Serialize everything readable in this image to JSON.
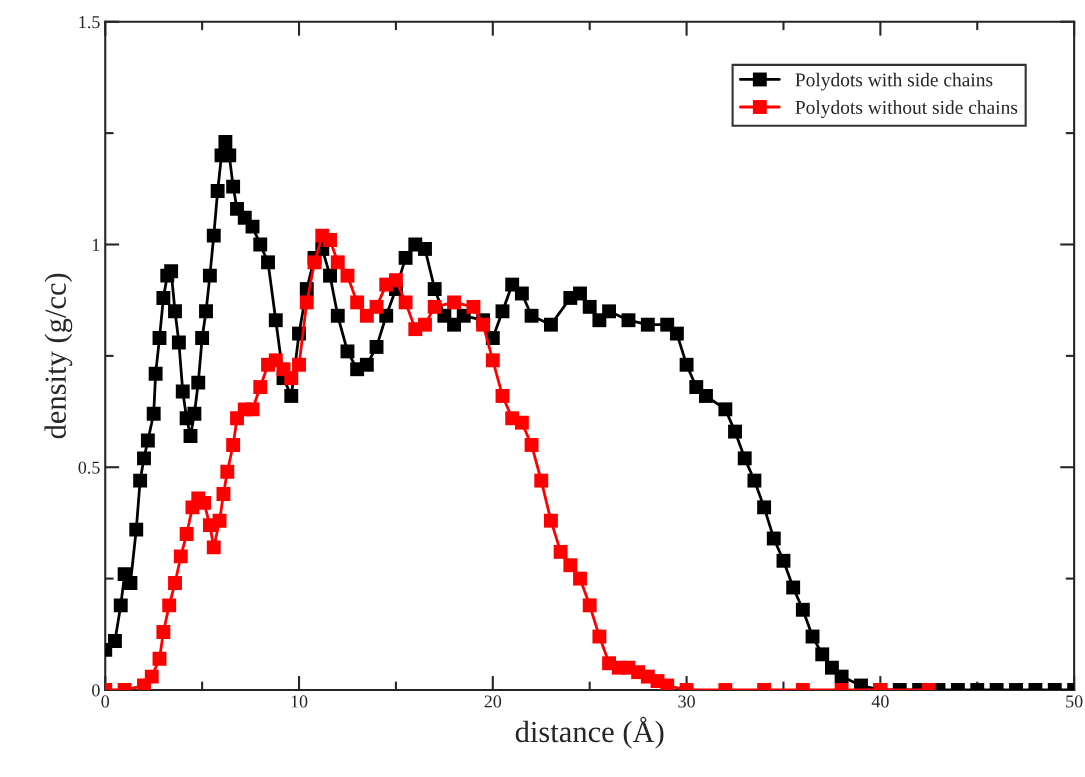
{
  "chart_data": {
    "type": "line",
    "xlabel": "distance (Å)",
    "ylabel": "density (g/cc)",
    "xlim": [
      0,
      50
    ],
    "ylim": [
      0,
      1.5
    ],
    "xticks": [
      0,
      10,
      20,
      30,
      40,
      50
    ],
    "yticks": [
      0,
      0.5,
      1,
      1.5
    ],
    "grid": false,
    "legend": "top right",
    "marker": "square",
    "line_style": "solid",
    "series": [
      {
        "name": "Polydots with side chains",
        "color": "#000000",
        "x": [
          0,
          0.5,
          0.8,
          1.0,
          1.3,
          1.6,
          1.8,
          2.0,
          2.2,
          2.5,
          2.6,
          2.8,
          3.0,
          3.2,
          3.4,
          3.6,
          3.8,
          4.0,
          4.2,
          4.4,
          4.6,
          4.8,
          5.0,
          5.2,
          5.4,
          5.6,
          5.8,
          6.0,
          6.2,
          6.4,
          6.6,
          6.8,
          7.2,
          7.6,
          8.0,
          8.4,
          8.8,
          9.2,
          9.6,
          10.0,
          10.4,
          10.8,
          11.2,
          11.6,
          12.0,
          12.5,
          13.0,
          13.5,
          14.0,
          14.5,
          15.0,
          15.5,
          16.0,
          16.5,
          17.0,
          17.5,
          18.0,
          18.5,
          19.5,
          20.0,
          20.5,
          21.0,
          21.5,
          22.0,
          23.0,
          24.0,
          24.5,
          25.0,
          25.5,
          26.0,
          27.0,
          28.0,
          29.0,
          29.5,
          30.0,
          30.5,
          31.0,
          32.0,
          32.5,
          33.0,
          33.5,
          34.0,
          34.5,
          35.0,
          35.5,
          36.0,
          36.5,
          37.0,
          37.5,
          38.0,
          39.0,
          40.0,
          41.0,
          42.0,
          43.0,
          44.0,
          45.0,
          46.0,
          47.0,
          48.0,
          49.0,
          50.0
        ],
        "values": [
          0.09,
          0.11,
          0.19,
          0.26,
          0.24,
          0.36,
          0.47,
          0.52,
          0.56,
          0.62,
          0.71,
          0.79,
          0.88,
          0.93,
          0.94,
          0.85,
          0.78,
          0.67,
          0.61,
          0.57,
          0.62,
          0.69,
          0.79,
          0.85,
          0.93,
          1.02,
          1.12,
          1.2,
          1.23,
          1.2,
          1.13,
          1.08,
          1.06,
          1.04,
          1.0,
          0.96,
          0.83,
          0.7,
          0.66,
          0.8,
          0.9,
          0.97,
          0.99,
          0.93,
          0.84,
          0.76,
          0.72,
          0.73,
          0.77,
          0.84,
          0.9,
          0.97,
          1.0,
          0.99,
          0.9,
          0.84,
          0.82,
          0.84,
          0.83,
          0.79,
          0.85,
          0.91,
          0.89,
          0.84,
          0.82,
          0.88,
          0.89,
          0.86,
          0.83,
          0.85,
          0.83,
          0.82,
          0.82,
          0.8,
          0.73,
          0.68,
          0.66,
          0.63,
          0.58,
          0.52,
          0.47,
          0.41,
          0.34,
          0.29,
          0.23,
          0.18,
          0.12,
          0.08,
          0.05,
          0.03,
          0.01,
          0.0,
          0,
          0,
          0,
          0,
          0,
          0,
          0,
          0,
          0,
          0
        ]
      },
      {
        "name": "Polydots without side chains",
        "color": "#ff0000",
        "x": [
          0,
          1.0,
          2.0,
          2.4,
          2.8,
          3.0,
          3.3,
          3.6,
          3.9,
          4.2,
          4.5,
          4.8,
          5.1,
          5.4,
          5.6,
          5.9,
          6.1,
          6.3,
          6.6,
          6.8,
          7.2,
          7.6,
          8.0,
          8.4,
          8.8,
          9.2,
          9.6,
          10.0,
          10.4,
          10.8,
          11.2,
          11.6,
          12.0,
          12.5,
          13.0,
          13.5,
          14.0,
          14.5,
          15.0,
          15.5,
          16.0,
          16.5,
          17.0,
          18.0,
          19.0,
          19.5,
          20.0,
          20.5,
          21.0,
          21.5,
          22.0,
          22.5,
          23.0,
          23.5,
          24.0,
          24.5,
          25.0,
          25.5,
          26.0,
          26.5,
          27.0,
          27.5,
          28.0,
          28.5,
          29.0,
          30.0,
          32.0,
          34.0,
          36.0,
          38.0,
          40.0,
          42.5
        ],
        "values": [
          0,
          0,
          0.01,
          0.03,
          0.07,
          0.13,
          0.19,
          0.24,
          0.3,
          0.35,
          0.41,
          0.43,
          0.42,
          0.37,
          0.32,
          0.38,
          0.44,
          0.49,
          0.55,
          0.61,
          0.63,
          0.63,
          0.68,
          0.73,
          0.74,
          0.72,
          0.7,
          0.73,
          0.87,
          0.96,
          1.02,
          1.01,
          0.96,
          0.93,
          0.87,
          0.84,
          0.86,
          0.91,
          0.92,
          0.87,
          0.81,
          0.82,
          0.86,
          0.87,
          0.86,
          0.82,
          0.74,
          0.66,
          0.61,
          0.6,
          0.55,
          0.47,
          0.38,
          0.31,
          0.28,
          0.25,
          0.19,
          0.12,
          0.06,
          0.05,
          0.05,
          0.04,
          0.03,
          0.02,
          0.01,
          0,
          0,
          0,
          0,
          0,
          0,
          0
        ]
      }
    ]
  }
}
